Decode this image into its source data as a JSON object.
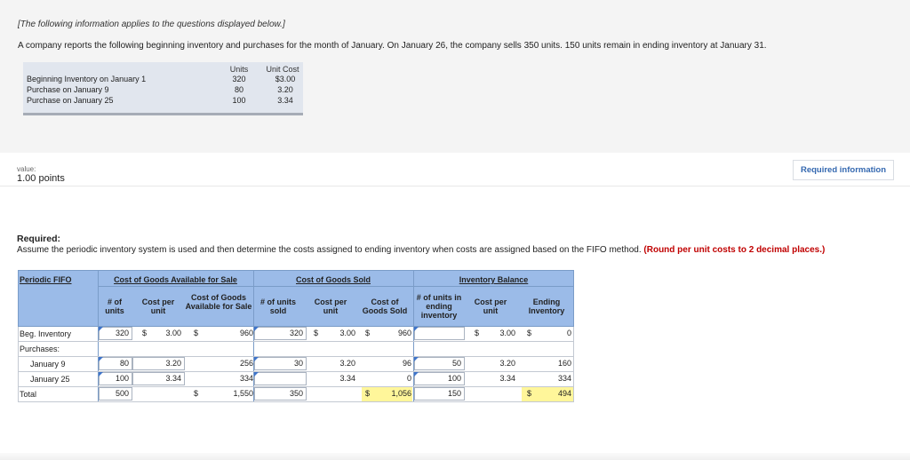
{
  "info": {
    "intro": "[The following information applies to the questions displayed below.]",
    "scenario": "A company reports the following beginning inventory and purchases for the month of January. On January 26, the company sells 350 units. 150 units remain in ending inventory at January 31.",
    "col_units": "Units",
    "col_cost": "Unit Cost",
    "rows": [
      {
        "label": "Beginning Inventory on January 1",
        "units": "320",
        "cost": "$3.00"
      },
      {
        "label": "Purchase on January 9",
        "units": "80",
        "cost": "3.20"
      },
      {
        "label": "Purchase on January 25",
        "units": "100",
        "cost": "3.34"
      }
    ]
  },
  "value_label": "value:",
  "points": "1.00 points",
  "required_button": "Required information",
  "required": {
    "title": "Required:",
    "text": "Assume the periodic inventory system is used and then determine the costs assigned to ending inventory when costs are assigned based on the FIFO method.",
    "note": "(Round per unit costs to 2 decimal places.)"
  },
  "worksheet": {
    "method": "Periodic FIFO",
    "group_available": "Cost of Goods Available for Sale",
    "group_sold": "Cost of Goods Sold",
    "group_balance": "Inventory Balance",
    "col_units": "# of units",
    "col_cost_per_unit": "Cost per unit",
    "col_cogas": "Cost of Goods Available for Sale",
    "col_units_sold": "# of units sold",
    "col_cogs": "Cost of Goods Sold",
    "col_units_ending": "# of units in ending inventory",
    "col_ending": "Ending Inventory",
    "label_beg": "Beg. Inventory",
    "label_purchases": "Purchases:",
    "label_jan9": "January 9",
    "label_jan25": "January 25",
    "label_total": "Total",
    "dollar": "$",
    "beg": {
      "units": "320",
      "cost": "3.00",
      "cogas": "960",
      "sold_units": "320",
      "sold_cost": "3.00",
      "cogs": "960",
      "end_units": "",
      "end_cost": "3.00",
      "ending": "0"
    },
    "jan9": {
      "units": "80",
      "cost": "3.20",
      "cogas": "256",
      "sold_units": "30",
      "sold_cost": "3.20",
      "cogs": "96",
      "end_units": "50",
      "end_cost": "3.20",
      "ending": "160"
    },
    "jan25": {
      "units": "100",
      "cost": "3.34",
      "cogas": "334",
      "sold_units": "",
      "sold_cost": "3.34",
      "cogs": "0",
      "end_units": "100",
      "end_cost": "3.34",
      "ending": "334"
    },
    "total": {
      "units": "500",
      "cogas": "1,550",
      "sold_units": "350",
      "cogs": "1,056",
      "end_units": "150",
      "ending": "494"
    }
  },
  "colors": {
    "header_band": "#9bbbe8",
    "highlight": "#fff69a",
    "note_red": "#c00000",
    "link_blue": "#3468b0"
  }
}
